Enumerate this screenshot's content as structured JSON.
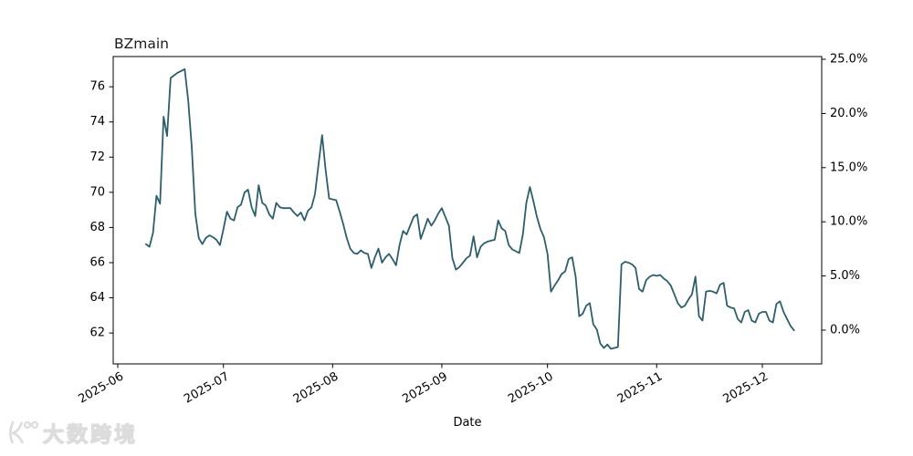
{
  "header": {
    "title": "BZmain"
  },
  "axes": {
    "xlabel": "Date",
    "x_tick_labels": [
      "2025-06",
      "2025-07",
      "2025-08",
      "2025-09",
      "2025-10",
      "2025-11",
      "2025-12"
    ],
    "left_y_ticks": [
      62,
      64,
      66,
      68,
      70,
      72,
      74,
      76
    ],
    "right_y_tick_labels": [
      "0.0%",
      "5.0%",
      "10.0%",
      "15.0%",
      "20.0%",
      "25.0%"
    ]
  },
  "watermark": {
    "text": "大数跨境",
    "logo": "koo-logo"
  },
  "colors": {
    "line": "#2d5f6b",
    "axis": "#000000",
    "title_text": "#1a1a1a",
    "watermark_gray": "#dcdcdc"
  },
  "chart_data": {
    "type": "line",
    "title": "BZmain",
    "xlabel": "Date",
    "legend": "none",
    "grid": false,
    "x_range": [
      "2025-06-01",
      "2025-12-18"
    ],
    "ylim_left": [
      60.2,
      77.7
    ],
    "right_axis": {
      "tick_labels": [
        "0.0%",
        "5.0%",
        "10.0%",
        "15.0%",
        "20.0%",
        "25.0%"
      ],
      "base_value": 62.16
    },
    "line_color": "#2d5f6b",
    "series": [
      {
        "name": "BZmain",
        "points": [
          [
            "2025-06-09",
            67.05
          ],
          [
            "2025-06-10",
            66.9
          ],
          [
            "2025-06-11",
            67.7
          ],
          [
            "2025-06-12",
            69.8
          ],
          [
            "2025-06-13",
            69.35
          ],
          [
            "2025-06-14",
            74.3
          ],
          [
            "2025-06-15",
            73.2
          ],
          [
            "2025-06-16",
            76.5
          ],
          [
            "2025-06-17",
            76.65
          ],
          [
            "2025-06-18",
            76.8
          ],
          [
            "2025-06-19",
            76.9
          ],
          [
            "2025-06-20",
            77.0
          ],
          [
            "2025-06-21",
            75.2
          ],
          [
            "2025-06-22",
            72.6
          ],
          [
            "2025-06-23",
            68.8
          ],
          [
            "2025-06-24",
            67.4
          ],
          [
            "2025-06-25",
            67.05
          ],
          [
            "2025-06-26",
            67.4
          ],
          [
            "2025-06-27",
            67.55
          ],
          [
            "2025-06-28",
            67.45
          ],
          [
            "2025-06-29",
            67.3
          ],
          [
            "2025-06-30",
            67.0
          ],
          [
            "2025-07-01",
            67.9
          ],
          [
            "2025-07-02",
            68.9
          ],
          [
            "2025-07-03",
            68.5
          ],
          [
            "2025-07-04",
            68.4
          ],
          [
            "2025-07-05",
            69.15
          ],
          [
            "2025-07-06",
            69.3
          ],
          [
            "2025-07-07",
            70.0
          ],
          [
            "2025-07-08",
            70.15
          ],
          [
            "2025-07-09",
            69.15
          ],
          [
            "2025-07-10",
            68.65
          ],
          [
            "2025-07-11",
            70.4
          ],
          [
            "2025-07-12",
            69.4
          ],
          [
            "2025-07-13",
            69.25
          ],
          [
            "2025-07-14",
            68.75
          ],
          [
            "2025-07-15",
            68.5
          ],
          [
            "2025-07-16",
            69.4
          ],
          [
            "2025-07-17",
            69.15
          ],
          [
            "2025-07-18",
            69.1
          ],
          [
            "2025-07-19",
            69.1
          ],
          [
            "2025-07-20",
            69.1
          ],
          [
            "2025-07-21",
            68.85
          ],
          [
            "2025-07-22",
            68.65
          ],
          [
            "2025-07-23",
            68.85
          ],
          [
            "2025-07-24",
            68.4
          ],
          [
            "2025-07-25",
            68.95
          ],
          [
            "2025-07-26",
            69.15
          ],
          [
            "2025-07-27",
            69.9
          ],
          [
            "2025-07-28",
            71.6
          ],
          [
            "2025-07-29",
            73.25
          ],
          [
            "2025-07-30",
            71.3
          ],
          [
            "2025-07-31",
            69.65
          ],
          [
            "2025-08-01",
            69.6
          ],
          [
            "2025-08-02",
            69.55
          ],
          [
            "2025-08-03",
            68.9
          ],
          [
            "2025-08-04",
            68.2
          ],
          [
            "2025-08-05",
            67.4
          ],
          [
            "2025-08-06",
            66.8
          ],
          [
            "2025-08-07",
            66.55
          ],
          [
            "2025-08-08",
            66.5
          ],
          [
            "2025-08-09",
            66.7
          ],
          [
            "2025-08-10",
            66.55
          ],
          [
            "2025-08-11",
            66.5
          ],
          [
            "2025-08-12",
            65.7
          ],
          [
            "2025-08-13",
            66.3
          ],
          [
            "2025-08-14",
            66.8
          ],
          [
            "2025-08-15",
            66.0
          ],
          [
            "2025-08-16",
            66.3
          ],
          [
            "2025-08-17",
            66.5
          ],
          [
            "2025-08-18",
            66.2
          ],
          [
            "2025-08-19",
            65.85
          ],
          [
            "2025-08-20",
            67.0
          ],
          [
            "2025-08-21",
            67.8
          ],
          [
            "2025-08-22",
            67.6
          ],
          [
            "2025-08-23",
            68.1
          ],
          [
            "2025-08-24",
            68.6
          ],
          [
            "2025-08-25",
            68.75
          ],
          [
            "2025-08-26",
            67.35
          ],
          [
            "2025-08-27",
            67.9
          ],
          [
            "2025-08-28",
            68.5
          ],
          [
            "2025-08-29",
            68.1
          ],
          [
            "2025-08-30",
            68.4
          ],
          [
            "2025-08-31",
            68.8
          ],
          [
            "2025-09-01",
            69.1
          ],
          [
            "2025-09-02",
            68.6
          ],
          [
            "2025-09-03",
            68.1
          ],
          [
            "2025-09-04",
            66.25
          ],
          [
            "2025-09-05",
            65.6
          ],
          [
            "2025-09-06",
            65.75
          ],
          [
            "2025-09-07",
            66.0
          ],
          [
            "2025-09-08",
            66.25
          ],
          [
            "2025-09-09",
            66.4
          ],
          [
            "2025-09-10",
            67.5
          ],
          [
            "2025-09-11",
            66.3
          ],
          [
            "2025-09-12",
            66.9
          ],
          [
            "2025-09-13",
            67.1
          ],
          [
            "2025-09-14",
            67.2
          ],
          [
            "2025-09-15",
            67.25
          ],
          [
            "2025-09-16",
            67.3
          ],
          [
            "2025-09-17",
            68.4
          ],
          [
            "2025-09-18",
            67.95
          ],
          [
            "2025-09-19",
            67.8
          ],
          [
            "2025-09-20",
            67.0
          ],
          [
            "2025-09-21",
            66.75
          ],
          [
            "2025-09-22",
            66.65
          ],
          [
            "2025-09-23",
            66.55
          ],
          [
            "2025-09-24",
            67.6
          ],
          [
            "2025-09-25",
            69.4
          ],
          [
            "2025-09-26",
            70.3
          ],
          [
            "2025-09-27",
            69.5
          ],
          [
            "2025-09-28",
            68.6
          ],
          [
            "2025-09-29",
            67.9
          ],
          [
            "2025-09-30",
            67.45
          ],
          [
            "2025-10-01",
            66.5
          ],
          [
            "2025-10-02",
            64.35
          ],
          [
            "2025-10-03",
            64.7
          ],
          [
            "2025-10-04",
            65.0
          ],
          [
            "2025-10-05",
            65.35
          ],
          [
            "2025-10-06",
            65.5
          ],
          [
            "2025-10-07",
            66.2
          ],
          [
            "2025-10-08",
            66.3
          ],
          [
            "2025-10-09",
            65.2
          ],
          [
            "2025-10-10",
            62.95
          ],
          [
            "2025-10-11",
            63.1
          ],
          [
            "2025-10-12",
            63.55
          ],
          [
            "2025-10-13",
            63.7
          ],
          [
            "2025-10-14",
            62.5
          ],
          [
            "2025-10-15",
            62.2
          ],
          [
            "2025-10-16",
            61.4
          ],
          [
            "2025-10-17",
            61.15
          ],
          [
            "2025-10-18",
            61.35
          ],
          [
            "2025-10-19",
            61.1
          ],
          [
            "2025-10-20",
            61.15
          ],
          [
            "2025-10-21",
            61.2
          ],
          [
            "2025-10-22",
            65.9
          ],
          [
            "2025-10-23",
            66.05
          ],
          [
            "2025-10-24",
            66.0
          ],
          [
            "2025-10-25",
            65.9
          ],
          [
            "2025-10-26",
            65.7
          ],
          [
            "2025-10-27",
            64.5
          ],
          [
            "2025-10-28",
            64.35
          ],
          [
            "2025-10-29",
            65.0
          ],
          [
            "2025-10-30",
            65.2
          ],
          [
            "2025-10-31",
            65.3
          ],
          [
            "2025-11-01",
            65.25
          ],
          [
            "2025-11-02",
            65.3
          ],
          [
            "2025-11-03",
            65.1
          ],
          [
            "2025-11-04",
            64.95
          ],
          [
            "2025-11-05",
            64.7
          ],
          [
            "2025-11-06",
            64.2
          ],
          [
            "2025-11-07",
            63.7
          ],
          [
            "2025-11-08",
            63.45
          ],
          [
            "2025-11-09",
            63.55
          ],
          [
            "2025-11-10",
            63.9
          ],
          [
            "2025-11-11",
            64.2
          ],
          [
            "2025-11-12",
            65.2
          ],
          [
            "2025-11-13",
            62.95
          ],
          [
            "2025-11-14",
            62.7
          ],
          [
            "2025-11-15",
            64.35
          ],
          [
            "2025-11-16",
            64.4
          ],
          [
            "2025-11-17",
            64.35
          ],
          [
            "2025-11-18",
            64.25
          ],
          [
            "2025-11-19",
            64.75
          ],
          [
            "2025-11-20",
            64.85
          ],
          [
            "2025-11-21",
            63.55
          ],
          [
            "2025-11-22",
            63.45
          ],
          [
            "2025-11-23",
            63.4
          ],
          [
            "2025-11-24",
            62.8
          ],
          [
            "2025-11-25",
            62.6
          ],
          [
            "2025-11-26",
            63.2
          ],
          [
            "2025-11-27",
            63.3
          ],
          [
            "2025-11-28",
            62.7
          ],
          [
            "2025-11-29",
            62.6
          ],
          [
            "2025-11-30",
            63.1
          ],
          [
            "2025-12-01",
            63.2
          ],
          [
            "2025-12-02",
            63.2
          ],
          [
            "2025-12-03",
            62.7
          ],
          [
            "2025-12-04",
            62.6
          ],
          [
            "2025-12-05",
            63.65
          ],
          [
            "2025-12-06",
            63.8
          ],
          [
            "2025-12-07",
            63.2
          ],
          [
            "2025-12-08",
            62.8
          ],
          [
            "2025-12-09",
            62.4
          ],
          [
            "2025-12-10",
            62.15
          ]
        ]
      }
    ]
  }
}
